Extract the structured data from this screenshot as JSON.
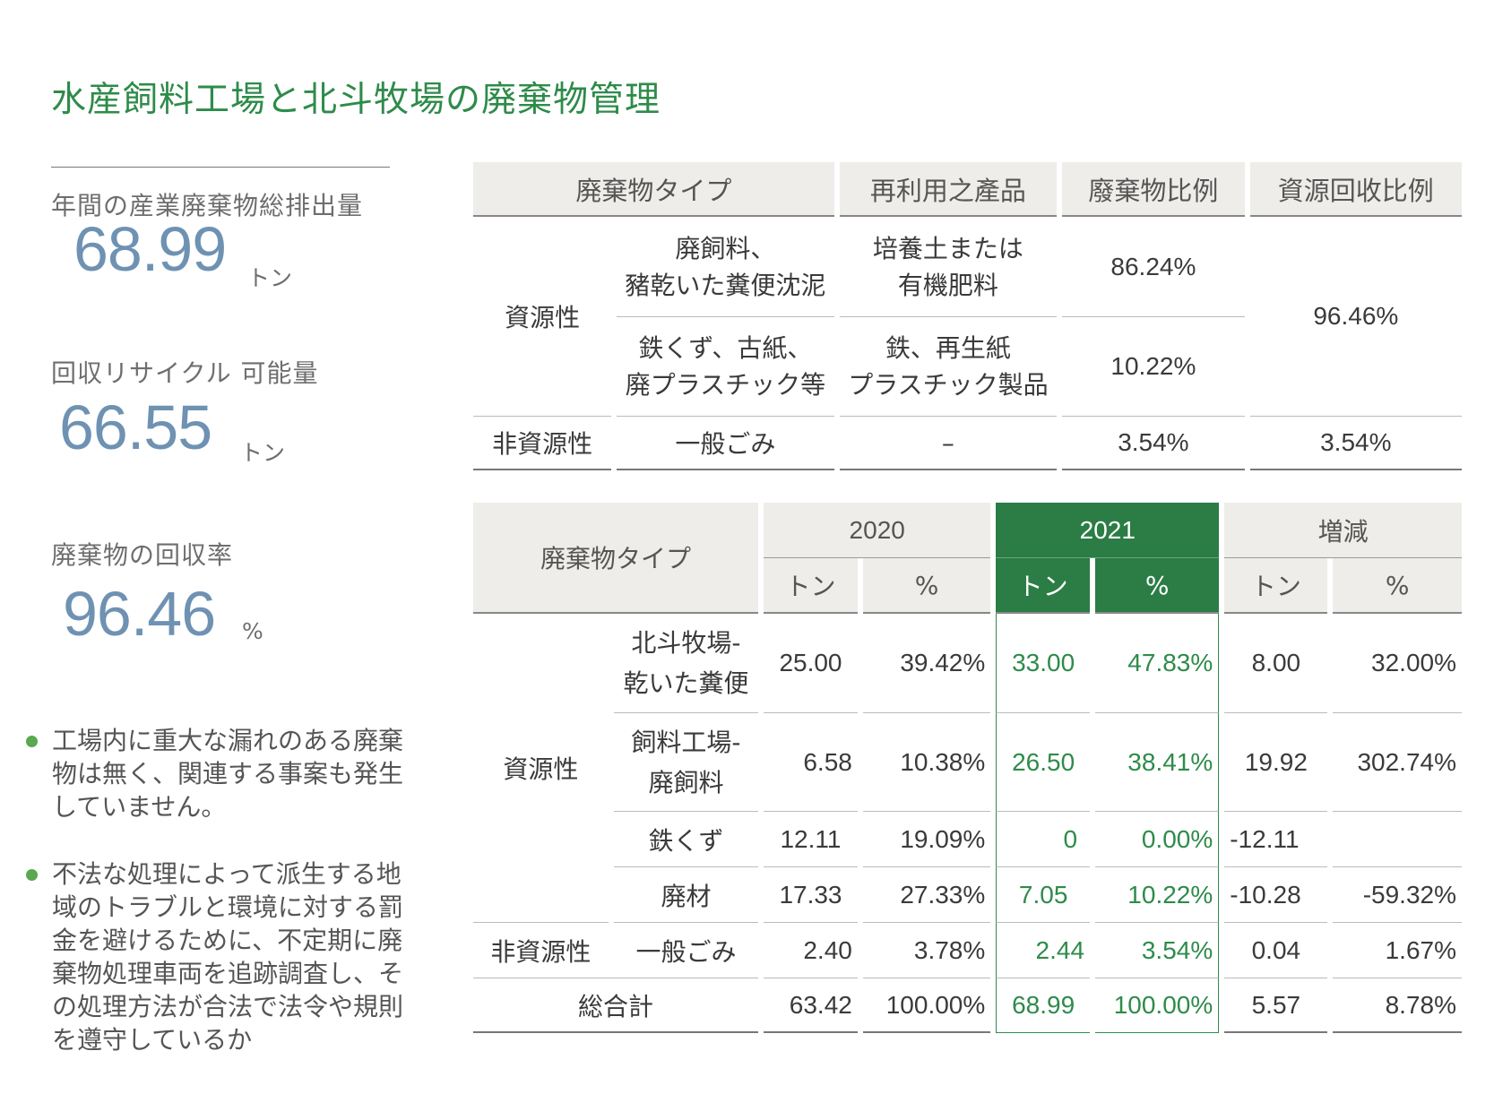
{
  "title": "水産飼料工場と北斗牧場の廃棄物管理",
  "stats": [
    {
      "label": "年間の産業廃棄物総排出量",
      "value": "68.99",
      "unit": "トン"
    },
    {
      "label": "回収リサイクル 可能量",
      "value": "66.55",
      "unit": "トン"
    },
    {
      "label": "廃棄物の回収率",
      "value": "96.46",
      "unit": "%"
    }
  ],
  "bullets": [
    "工場内に重大な漏れのある廃棄物は無く、関連する事案も発生していません。",
    "不法な処理によって派生する地域のトラブルと環境に対する罰金を避けるために、不定期に廃棄物処理車両を追跡調査し、その処理方法が合法で法令や規則を遵守しているか"
  ],
  "table1": {
    "headers": [
      "廃棄物タイプ",
      "再利用之產品",
      "廢棄物比例",
      "資源回收比例"
    ],
    "rows": {
      "resource_label": "資源性",
      "r1": {
        "type_line1": "廃飼料、",
        "type_line2": "豬乾いた糞便沈泥",
        "prod_line1": "培養土または",
        "prod_line2": "有機肥料",
        "ratio": "86.24%"
      },
      "r2": {
        "type_line1": "鉄くず、古紙、",
        "type_line2": "廃プラスチック等",
        "prod_line1": "鉄、再生紙",
        "prod_line2": "プラスチック製品",
        "ratio": "10.22%"
      },
      "resource_recovery": "96.46%",
      "nonres": {
        "label": "非資源性",
        "type": "一般ごみ",
        "prod": "–",
        "ratio": "3.54%",
        "recovery": "3.54%"
      }
    }
  },
  "table2": {
    "header_type": "廃棄物タイプ",
    "years": [
      "2020",
      "2021",
      "増減"
    ],
    "unit_ton": "トン",
    "unit_pct": "%",
    "resource_label": "資源性",
    "nonres_label": "非資源性",
    "rows": [
      {
        "name1": "北斗牧場-",
        "name2": "乾いた糞便",
        "t2020": "25.00",
        "p2020": "39.42%",
        "t2021": "33.00",
        "p2021": "47.83%",
        "td": "8.00",
        "pd": "32.00%"
      },
      {
        "name1": "飼料工場-",
        "name2": "廃飼料",
        "t2020": "6.58",
        "p2020": "10.38%",
        "t2021": "26.50",
        "p2021": "38.41%",
        "td": "19.92",
        "pd": "302.74%"
      },
      {
        "name1": "鉄くず",
        "t2020": "12.11",
        "p2020": "19.09%",
        "t2021": "0",
        "p2021": "0.00%",
        "td": "-12.11",
        "pd": ""
      },
      {
        "name1": "廃材",
        "t2020": "17.33",
        "p2020": "27.33%",
        "t2021": "7.05",
        "p2021": "10.22%",
        "td": "-10.28",
        "pd": "-59.32%"
      },
      {
        "name1": "一般ごみ",
        "t2020": "2.40",
        "p2020": "3.78%",
        "t2021": "2.44",
        "p2021": "3.54%",
        "td": "0.04",
        "pd": "1.67%"
      }
    ],
    "total": {
      "label": "総合計",
      "t2020": "63.42",
      "p2020": "100.00%",
      "t2021": "68.99",
      "p2021": "100.00%",
      "td": "5.57",
      "pd": "8.78%"
    }
  }
}
